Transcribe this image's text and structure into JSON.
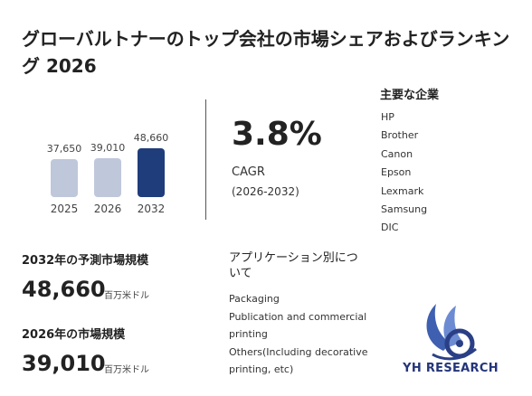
{
  "title": "グローバルトナーのトップ会社の市場シェアおよびランキング 2026",
  "chart": {
    "bars": [
      {
        "year": "2025",
        "label": "37,650",
        "value": 37650,
        "color": "#bfc7db"
      },
      {
        "year": "2026",
        "label": "39,010",
        "value": 39010,
        "color": "#bfc7db"
      },
      {
        "year": "2032",
        "label": "48,660",
        "value": 48660,
        "color": "#1f3d7a"
      }
    ]
  },
  "chart_data": {
    "type": "bar",
    "categories": [
      "2025",
      "2026",
      "2032"
    ],
    "values": [
      37650,
      39010,
      48660
    ]
  },
  "cagr": {
    "value": "3.8%",
    "label": "CAGR",
    "period": "(2026-2032)"
  },
  "companies": {
    "heading": "主要な企業",
    "items": [
      "HP",
      "Brother",
      "Canon",
      "Epson",
      "Lexmark",
      "Samsung",
      "DIC"
    ]
  },
  "forecast": {
    "label": "2032年の予測市場規模",
    "value": "48,660",
    "unit": "百万米ドル"
  },
  "current": {
    "label": "2026年の市場規模",
    "value": "39,010",
    "unit": "百万米ドル"
  },
  "applications": {
    "heading": "アプリケーション別について",
    "items": [
      "Packaging",
      "Publication and commercial printing",
      "Others(Including decorative printing, etc)"
    ]
  },
  "logo": {
    "text": "YH RESEARCH"
  }
}
